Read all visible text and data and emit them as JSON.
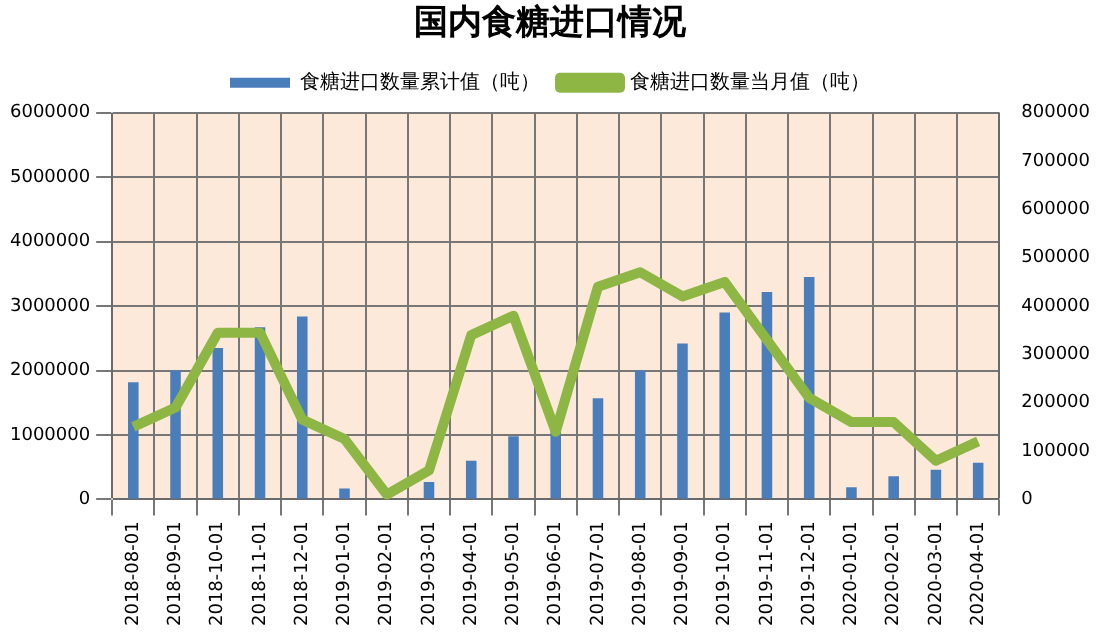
{
  "chart_data": {
    "type": "bar",
    "title": "国内食糖进口情况",
    "categories": [
      "2018-08-01",
      "2018-09-01",
      "2018-10-01",
      "2018-11-01",
      "2018-12-01",
      "2019-01-01",
      "2019-02-01",
      "2019-03-01",
      "2019-04-01",
      "2019-05-01",
      "2019-06-01",
      "2019-07-01",
      "2019-08-01",
      "2019-09-01",
      "2019-10-01",
      "2019-11-01",
      "2019-12-01",
      "2020-01-01",
      "2020-02-01",
      "2020-03-01",
      "2020-04-01"
    ],
    "series": [
      {
        "name": "食糖进口数量累计值（吨）",
        "color": "#4a7ebb",
        "values": [
          1820000,
          2000000,
          2350000,
          2670000,
          2840000,
          170000,
          null,
          270000,
          600000,
          980000,
          1100000,
          1570000,
          2000000,
          2420000,
          2900000,
          3220000,
          3450000,
          190000,
          360000,
          460000,
          570000
        ]
      },
      {
        "name": "食糖进口数量当月值（吨）",
        "type": "line",
        "axis": "y2",
        "color": "#8db645",
        "values": [
          150000,
          190000,
          345000,
          345000,
          165000,
          125000,
          10000,
          60000,
          340000,
          380000,
          140000,
          440000,
          470000,
          420000,
          450000,
          330000,
          210000,
          160000,
          160000,
          80000,
          120000
        ]
      }
    ],
    "ylim": [
      0,
      6000000
    ],
    "yticks": [
      0,
      1000000,
      2000000,
      3000000,
      4000000,
      5000000,
      6000000
    ],
    "y2lim": [
      0,
      800000
    ],
    "y2ticks": [
      0,
      100000,
      200000,
      300000,
      400000,
      500000,
      600000,
      700000,
      800000
    ],
    "grid": true,
    "legend": "top",
    "marker": "none"
  }
}
